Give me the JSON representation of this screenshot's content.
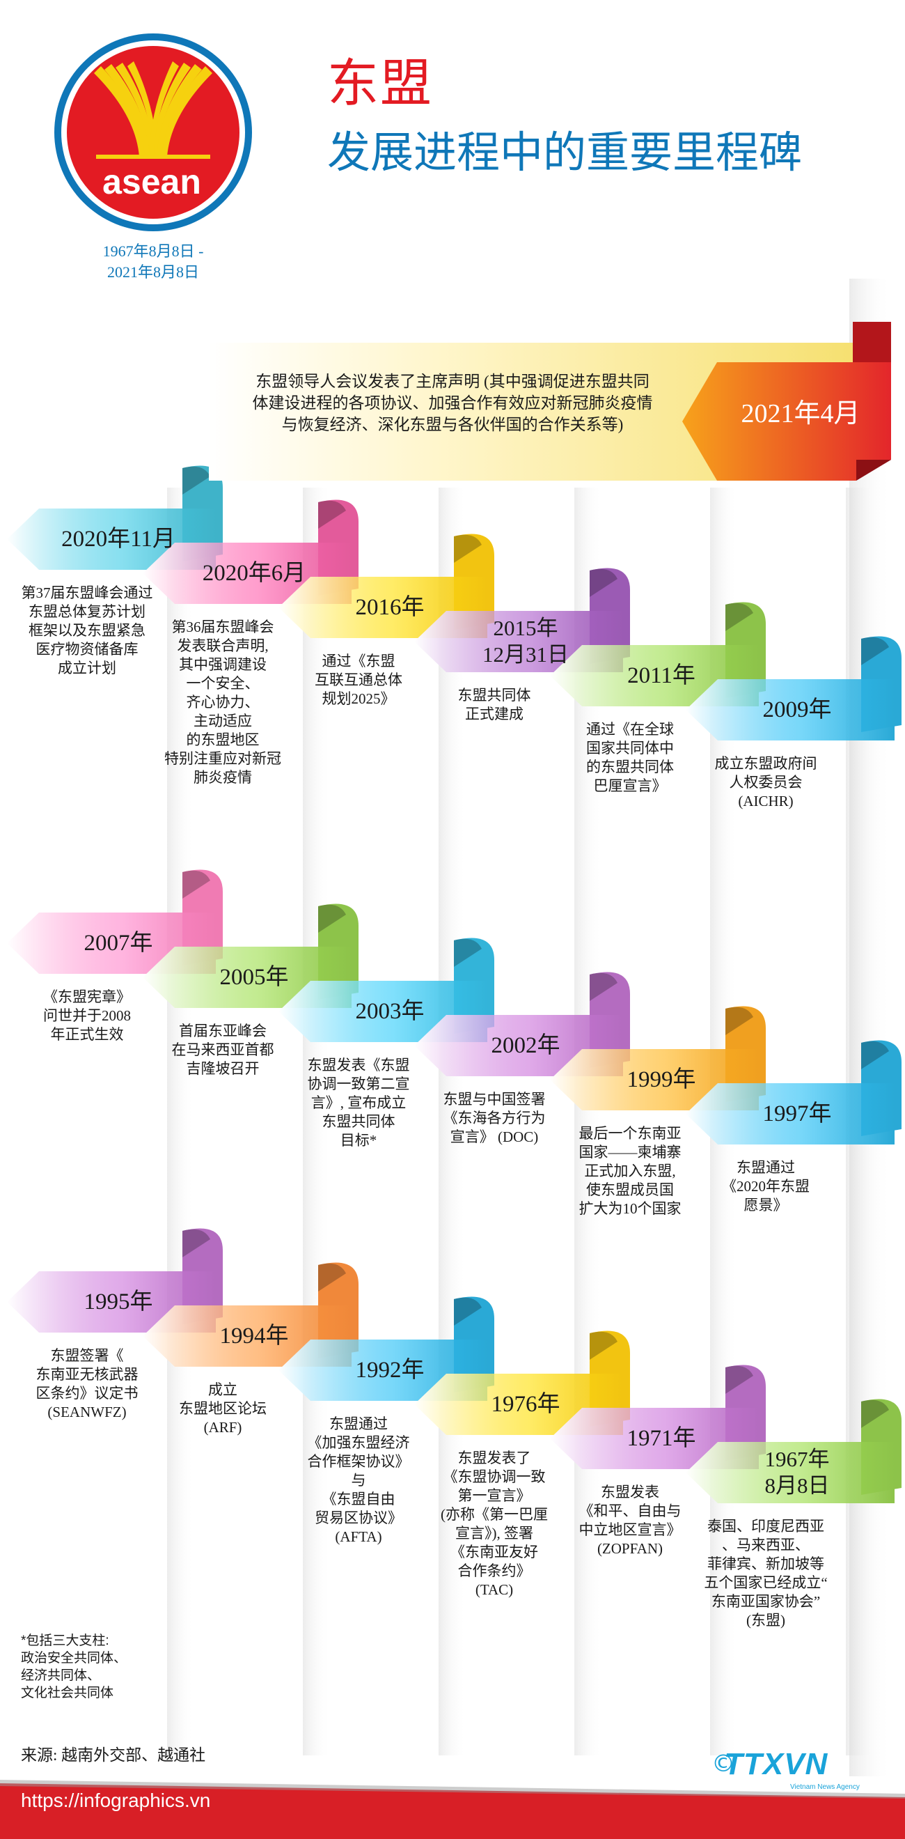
{
  "header": {
    "title": "东盟",
    "subtitle": "发展进程中的重要里程碑",
    "logo_text": "asean",
    "dates": "1967年8月8日 -\n2021年8月8日"
  },
  "top_event": {
    "label": "2021年4月",
    "description": "东盟领导人会议发表了主席声明 (其中强调促进东盟共同\n体建设进程的各项协议、加强合作有效应对新冠肺炎疫情\n与恢复经济、深化东盟与各伙伴国的合作关系等)"
  },
  "rows": [
    [
      {
        "label": "2020年11月",
        "description": "第37届东盟峰会通过\n东盟总体复苏计划\n框架以及东盟紧急\n医疗物资储备库\n成立计划",
        "color": "#3fb3c9"
      },
      {
        "label": "2020年6月",
        "description": "第36届东盟峰会\n发表联合声明,\n其中强调建设\n一个安全、\n齐心协力、\n主动适应\n的东盟地区\n特别注重应对新冠\n肺炎疫情",
        "color": "#e35b9b"
      },
      {
        "label": "2016年",
        "description": "通过《东盟\n互联互通总体\n规划2025》",
        "color": "#f2c411"
      },
      {
        "label": "2015年\n12月31日",
        "description": "东盟共同体\n正式建成",
        "color": "#9b5bb4"
      },
      {
        "label": "2011年",
        "description": "通过《在全球\n国家共同体中\n的东盟共同体\n巴厘宣言》",
        "color": "#8dc34a"
      },
      {
        "label": "2009年",
        "description": "成立东盟政府间\n人权委员会\n(AICHR)",
        "color": "#2aa9d6"
      }
    ],
    [
      {
        "label": "2007年",
        "description": "《东盟宪章》\n问世并于2008\n年正式生效",
        "color": "#f07bb3"
      },
      {
        "label": "2005年",
        "description": "首届东亚峰会\n在马来西亚首都\n吉隆坡召开",
        "color": "#8dc34a"
      },
      {
        "label": "2003年",
        "description": "东盟发表《东盟\n协调一致第二宣\n言》, 宣布成立\n东盟共同体\n目标*",
        "color": "#33b4d9"
      },
      {
        "label": "2002年",
        "description": "东盟与中国签署\n《东海各方行为\n宣言》 (DOC)",
        "color": "#b46cc0"
      },
      {
        "label": "1999年",
        "description": "最后一个东南亚\n国家——柬埔寨\n正式加入东盟,\n使东盟成员国\n扩大为10个国家",
        "color": "#f0a020"
      },
      {
        "label": "1997年",
        "description": "东盟通过\n《2020年东盟\n愿景》",
        "color": "#2aa9d6"
      }
    ],
    [
      {
        "label": "1995年",
        "description": "东盟签署《\n东南亚无核武器\n区条约》议定书\n(SEANWFZ)",
        "color": "#b46cc0"
      },
      {
        "label": "1994年",
        "description": "成立\n东盟地区论坛\n(ARF)",
        "color": "#f0883a"
      },
      {
        "label": "1992年",
        "description": "东盟通过\n《加强东盟经济\n合作框架协议》\n与\n《东盟自由\n贸易区协议》\n(AFTA)",
        "color": "#2aa9d6"
      },
      {
        "label": "1976年",
        "description": "东盟发表了\n《东盟协调一致\n第一宣言》\n(亦称《第一巴厘\n宣言》), 签署\n《东南亚友好\n合作条约》\n(TAC)",
        "color": "#f2c411"
      },
      {
        "label": "1971年",
        "description": "东盟发表\n《和平、自由与\n中立地区宣言》\n(ZOPFAN)",
        "color": "#b46cc0"
      },
      {
        "label": "1967年\n8月8日",
        "description": "泰国、印度尼西亚\n、马来西亚、\n菲律宾、新加坡等\n五个国家已经成立“\n东南亚国家协会”\n(东盟)",
        "color": "#8dc34a"
      }
    ]
  ],
  "footnote": "*包括三大支柱:\n政治安全共同体、\n经济共同体、\n文化社会共同体",
  "source": "来源: 越南外交部、越通社",
  "url": "https://infographics.vn",
  "agency": {
    "name": "TTXVN",
    "sub": "Vietnam News Agency",
    "copyright": "©"
  },
  "colors": {
    "red": "#e31b23",
    "blue": "#0f77b8",
    "footer_red": "#d81f26"
  }
}
